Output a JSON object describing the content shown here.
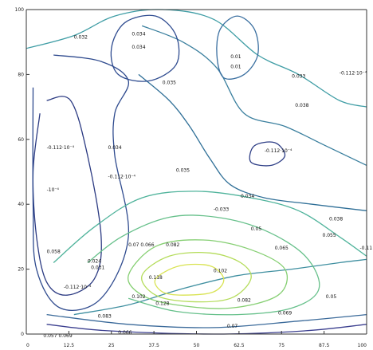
{
  "chart_data": {
    "type": "contour",
    "title": "",
    "xlabel": "",
    "ylabel": "",
    "xlim": [
      0,
      100
    ],
    "ylim": [
      0,
      100
    ],
    "x_ticks": [
      "0",
      "12.5",
      "25",
      "37.5",
      "50",
      "62.5",
      "75",
      "87.5",
      "100"
    ],
    "y_ticks": [
      "0",
      "20",
      "40",
      "60",
      "80",
      "100"
    ],
    "grid": false,
    "colormap": "viridis",
    "contour_levels": [
      {
        "name": "level-1",
        "color": "#3b3f8f",
        "points": [
          [
            6,
            3
          ],
          [
            24,
            1
          ],
          [
            55,
            0
          ],
          [
            82,
            1
          ],
          [
            100,
            3
          ]
        ]
      },
      {
        "name": "level-2",
        "color": "#3b6a9a",
        "points": [
          [
            6,
            6
          ],
          [
            30,
            3
          ],
          [
            55,
            2
          ],
          [
            80,
            4
          ],
          [
            100,
            6
          ]
        ]
      },
      {
        "name": "level-3",
        "color": "#3f8fa0",
        "points": [
          [
            14,
            6
          ],
          [
            30,
            9
          ],
          [
            46,
            14
          ],
          [
            62,
            18
          ],
          [
            78,
            20
          ],
          [
            92,
            22
          ],
          [
            100,
            23
          ]
        ]
      },
      {
        "name": "level-4",
        "color": "#2b3a82",
        "points": [
          [
            4,
            68
          ],
          [
            2,
            50
          ],
          [
            3,
            30
          ],
          [
            6,
            16
          ],
          [
            12,
            12
          ],
          [
            20,
            17
          ],
          [
            22,
            30
          ],
          [
            18,
            55
          ],
          [
            13,
            72
          ],
          [
            6,
            72
          ]
        ]
      },
      {
        "name": "level-5",
        "color": "#2e4a8e",
        "points": [
          [
            2,
            76
          ],
          [
            2,
            40
          ],
          [
            3,
            20
          ],
          [
            10,
            8
          ],
          [
            22,
            11
          ],
          [
            30,
            30
          ],
          [
            26,
            55
          ],
          [
            26,
            68
          ],
          [
            30,
            78
          ],
          [
            22,
            84
          ],
          [
            8,
            86
          ]
        ]
      },
      {
        "name": "level-6",
        "color": "#2f6f97",
        "points": [
          [
            33,
            80
          ],
          [
            42,
            72
          ],
          [
            48,
            64
          ],
          [
            54,
            54
          ],
          [
            60,
            46
          ],
          [
            70,
            42
          ],
          [
            84,
            40
          ],
          [
            100,
            38
          ]
        ]
      },
      {
        "name": "level-7",
        "color": "#3a7f9e",
        "points": [
          [
            34,
            95
          ],
          [
            46,
            90
          ],
          [
            56,
            82
          ],
          [
            64,
            68
          ],
          [
            76,
            64
          ],
          [
            88,
            58
          ],
          [
            100,
            52
          ]
        ]
      },
      {
        "name": "level-8",
        "color": "#3f9da5",
        "points": [
          [
            0,
            88
          ],
          [
            14,
            92
          ],
          [
            26,
            98
          ],
          [
            40,
            100
          ],
          [
            55,
            97
          ],
          [
            68,
            86
          ],
          [
            80,
            80
          ],
          [
            92,
            72
          ],
          [
            100,
            70
          ]
        ]
      },
      {
        "name": "ring-1",
        "color": "#2f4c90",
        "closed": true,
        "points": [
          [
            27,
            80
          ],
          [
            36,
            78
          ],
          [
            44,
            83
          ],
          [
            44,
            92
          ],
          [
            38,
            98
          ],
          [
            29,
            96
          ],
          [
            25,
            88
          ]
        ]
      },
      {
        "name": "ring-2",
        "color": "#3a6fa0",
        "closed": true,
        "points": [
          [
            58,
            79
          ],
          [
            64,
            80
          ],
          [
            68,
            86
          ],
          [
            67,
            94
          ],
          [
            62,
            98
          ],
          [
            57,
            94
          ],
          [
            56,
            86
          ]
        ]
      },
      {
        "name": "ring-3",
        "color": "#2e3e86",
        "closed": true,
        "points": [
          [
            66,
            53
          ],
          [
            72,
            52
          ],
          [
            76,
            55
          ],
          [
            73,
            59
          ],
          [
            67,
            58
          ]
        ]
      },
      {
        "name": "band-1",
        "color": "#4fb39b",
        "points": [
          [
            8,
            22
          ],
          [
            20,
            33
          ],
          [
            34,
            42
          ],
          [
            50,
            44
          ],
          [
            66,
            42
          ],
          [
            80,
            38
          ],
          [
            92,
            30
          ],
          [
            100,
            24
          ]
        ]
      },
      {
        "name": "band-2",
        "color": "#66c08a",
        "points": [
          [
            18,
            22
          ],
          [
            28,
            30
          ],
          [
            42,
            36
          ],
          [
            56,
            36
          ],
          [
            70,
            32
          ],
          [
            82,
            24
          ],
          [
            86,
            14
          ],
          [
            78,
            8
          ],
          [
            62,
            6
          ],
          [
            44,
            7
          ],
          [
            30,
            11
          ]
        ]
      },
      {
        "name": "band-3",
        "color": "#86cf73",
        "closed": true,
        "points": [
          [
            30,
            18
          ],
          [
            38,
            27
          ],
          [
            52,
            29
          ],
          [
            66,
            26
          ],
          [
            76,
            20
          ],
          [
            74,
            12
          ],
          [
            60,
            8
          ],
          [
            44,
            9
          ],
          [
            34,
            12
          ]
        ]
      },
      {
        "name": "band-4",
        "color": "#b4dc5a",
        "closed": true,
        "points": [
          [
            34,
            18
          ],
          [
            42,
            24
          ],
          [
            54,
            25
          ],
          [
            63,
            22
          ],
          [
            66,
            17
          ],
          [
            60,
            11
          ],
          [
            48,
            10
          ],
          [
            38,
            12
          ]
        ]
      },
      {
        "name": "band-5",
        "color": "#d9e352",
        "closed": true,
        "points": [
          [
            38,
            17
          ],
          [
            45,
            21
          ],
          [
            54,
            21
          ],
          [
            58,
            17
          ],
          [
            55,
            13
          ],
          [
            46,
            12
          ],
          [
            40,
            13
          ]
        ]
      }
    ],
    "annotations": [
      {
        "text": "0.032",
        "x": 14,
        "y": 91
      },
      {
        "text": "0.034",
        "x": 31,
        "y": 92
      },
      {
        "text": "0.034",
        "x": 31,
        "y": 88
      },
      {
        "text": "0.01",
        "x": 60,
        "y": 85
      },
      {
        "text": "0.01",
        "x": 60,
        "y": 82
      },
      {
        "text": "0.033",
        "x": 78,
        "y": 79
      },
      {
        "text": "-0.112·10⁻⁴",
        "x": 92,
        "y": 80
      },
      {
        "text": "0.035",
        "x": 40,
        "y": 77
      },
      {
        "text": "0.038",
        "x": 79,
        "y": 70
      },
      {
        "text": "-0.112·10⁻⁴",
        "x": 6,
        "y": 57
      },
      {
        "text": "0.034",
        "x": 24,
        "y": 57
      },
      {
        "text": "-0.112·10⁻⁴",
        "x": 70,
        "y": 56
      },
      {
        "text": "-0.112·10⁻⁴",
        "x": 24,
        "y": 48
      },
      {
        "text": "0.035",
        "x": 44,
        "y": 50
      },
      {
        "text": "-10⁻⁴",
        "x": 6,
        "y": 44
      },
      {
        "text": "0.034",
        "x": 63,
        "y": 42
      },
      {
        "text": "-0.033",
        "x": 55,
        "y": 38
      },
      {
        "text": "0.038",
        "x": 89,
        "y": 35
      },
      {
        "text": "0.05",
        "x": 66,
        "y": 32
      },
      {
        "text": "0.055",
        "x": 87,
        "y": 30
      },
      {
        "text": "-0.11",
        "x": 98,
        "y": 26
      },
      {
        "text": "0.058",
        "x": 6,
        "y": 25
      },
      {
        "text": "0.065",
        "x": 73,
        "y": 26
      },
      {
        "text": "0.07 0.066",
        "x": 30,
        "y": 27
      },
      {
        "text": "0.082",
        "x": 41,
        "y": 27
      },
      {
        "text": "0.102",
        "x": 55,
        "y": 19
      },
      {
        "text": "0.024",
        "x": 18,
        "y": 22
      },
      {
        "text": "0.031",
        "x": 19,
        "y": 20
      },
      {
        "text": "0.118",
        "x": 36,
        "y": 17
      },
      {
        "text": "-0.112·10⁻⁴",
        "x": 11,
        "y": 14
      },
      {
        "text": "0.05",
        "x": 88,
        "y": 11
      },
      {
        "text": "0.082",
        "x": 62,
        "y": 10
      },
      {
        "text": "0.102",
        "x": 31,
        "y": 11
      },
      {
        "text": "0.128",
        "x": 38,
        "y": 9
      },
      {
        "text": "0.069",
        "x": 74,
        "y": 6
      },
      {
        "text": "0.083",
        "x": 21,
        "y": 5
      },
      {
        "text": "0.07",
        "x": 59,
        "y": 2
      },
      {
        "text": "0.066",
        "x": 27,
        "y": 0
      },
      {
        "text": "0.057 0.069",
        "x": 5,
        "y": -1
      }
    ]
  }
}
